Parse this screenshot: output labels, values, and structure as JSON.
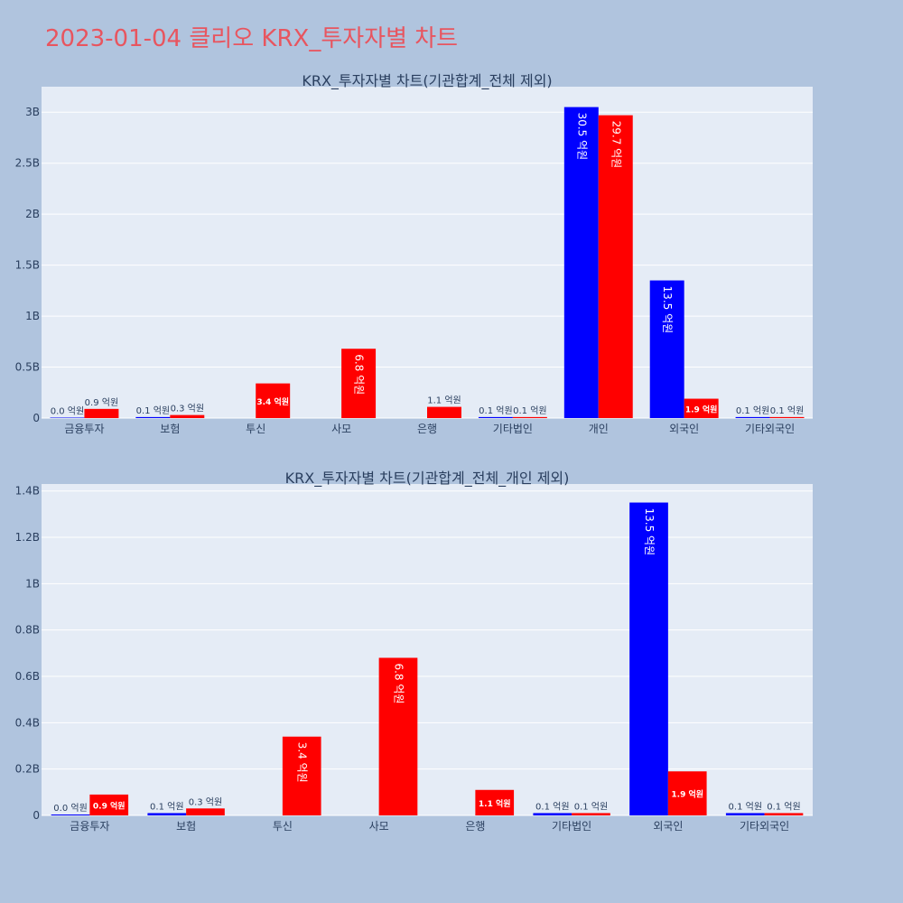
{
  "page_title": "2023-01-04 클리오 KRX_투자자별 차트",
  "colors": {
    "title": "#e8555f",
    "background": "#b0c4de",
    "plot_bg": "#e5ecf6",
    "sell": "#0000ff",
    "buy": "#ff0000",
    "text": "#2a3f5f"
  },
  "chart_data": [
    {
      "type": "bar",
      "title": "KRX_투자자별 차트(기관합계_전체 제외)",
      "xlabel": "",
      "ylabel": "",
      "categories": [
        "금융투자",
        "보험",
        "투신",
        "사모",
        "은행",
        "기타법인",
        "개인",
        "외국인",
        "기타외국인"
      ],
      "ylim": [
        0,
        3250000000
      ],
      "yticks": [
        0,
        500000000,
        1000000000,
        1500000000,
        2000000000,
        2500000000,
        3000000000
      ],
      "ytick_labels": [
        "0",
        "0.5B",
        "1B",
        "1.5B",
        "2B",
        "2.5B",
        "3B"
      ],
      "grid": true,
      "series": [
        {
          "color": "#0000ff",
          "values": [
            4000000,
            10000000,
            null,
            null,
            null,
            10000000,
            3050000000,
            1350000000,
            10000000
          ],
          "labels": [
            "0.0 억원",
            "0.1 억원",
            "",
            "",
            "",
            "0.1 억원",
            "30.5 억원",
            "13.5 억원",
            "0.1 억원"
          ]
        },
        {
          "color": "#ff0000",
          "values": [
            90000000,
            30000000,
            340000000,
            680000000,
            110000000,
            10000000,
            2970000000,
            190000000,
            10000000
          ],
          "labels": [
            "0.9 억원",
            "0.3 억원",
            "3.4 억원",
            "6.8 억원",
            "1.1 억원",
            "0.1 억원",
            "29.7 억원",
            "1.9 억원",
            "0.1 억원"
          ]
        }
      ]
    },
    {
      "type": "bar",
      "title": "KRX_투자자별 차트(기관합계_전체_개인 제외)",
      "xlabel": "",
      "ylabel": "",
      "categories": [
        "금융투자",
        "보험",
        "투신",
        "사모",
        "은행",
        "기타법인",
        "외국인",
        "기타외국인"
      ],
      "ylim": [
        0,
        1430000000
      ],
      "yticks": [
        0,
        200000000,
        400000000,
        600000000,
        800000000,
        1000000000,
        1200000000,
        1400000000
      ],
      "ytick_labels": [
        "0",
        "0.2B",
        "0.4B",
        "0.6B",
        "0.8B",
        "1B",
        "1.2B",
        "1.4B"
      ],
      "grid": true,
      "series": [
        {
          "color": "#0000ff",
          "values": [
            4000000,
            10000000,
            null,
            null,
            null,
            10000000,
            1350000000,
            10000000
          ],
          "labels": [
            "0.0 억원",
            "0.1 억원",
            "",
            "",
            "",
            "0.1 억원",
            "13.5 억원",
            "0.1 억원"
          ]
        },
        {
          "color": "#ff0000",
          "values": [
            90000000,
            30000000,
            340000000,
            680000000,
            110000000,
            10000000,
            190000000,
            10000000
          ],
          "labels": [
            "0.9 억원",
            "0.3 억원",
            "3.4 억원",
            "6.8 억원",
            "1.1 억원",
            "0.1 억원",
            "1.9 억원",
            "0.1 억원"
          ]
        }
      ]
    }
  ]
}
